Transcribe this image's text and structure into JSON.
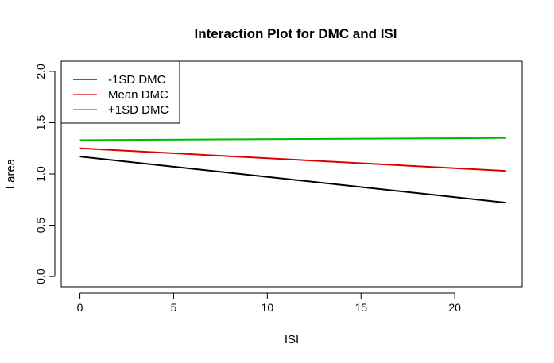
{
  "chart_data": {
    "type": "line",
    "title": "Interaction Plot for DMC and ISI",
    "xlabel": "ISI",
    "ylabel": "Larea",
    "xlim": [
      -1,
      23.6
    ],
    "ylim": [
      -0.1,
      2.1
    ],
    "xticks": [
      0,
      5,
      10,
      15,
      20
    ],
    "yticks": [
      0.0,
      0.5,
      1.0,
      1.5,
      2.0
    ],
    "xtick_labels": [
      "0",
      "5",
      "10",
      "15",
      "20"
    ],
    "ytick_labels": [
      "0.0",
      "0.5",
      "1.0",
      "1.5",
      "2.0"
    ],
    "legend_position": "top-left",
    "series": [
      {
        "name": "-1SD DMC",
        "color": "#000000",
        "x": [
          0,
          22.7
        ],
        "y": [
          1.17,
          0.72
        ]
      },
      {
        "name": "Mean DMC",
        "color": "#dd0000",
        "x": [
          0,
          22.7
        ],
        "y": [
          1.25,
          1.03
        ]
      },
      {
        "name": "+1SD DMC",
        "color": "#00bb00",
        "x": [
          0,
          22.7
        ],
        "y": [
          1.33,
          1.35
        ]
      }
    ]
  }
}
